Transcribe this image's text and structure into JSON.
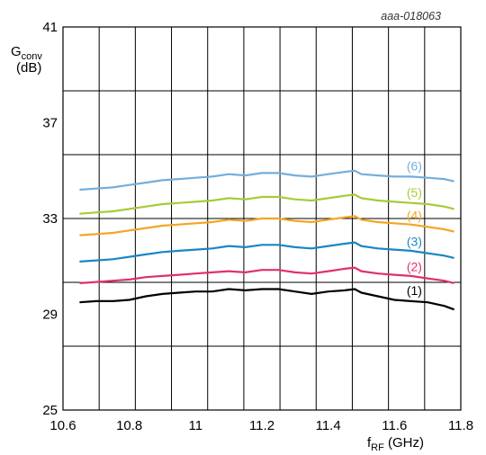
{
  "chart_data": {
    "type": "line",
    "code_label": "aaa-018063",
    "ylabel_main": "G",
    "ylabel_sub": "conv",
    "ylabel_unit": "(dB)",
    "xlabel_main": "f",
    "xlabel_sub": "RF",
    "xlabel_unit": " (GHz)",
    "xlim": [
      10.6,
      11.8
    ],
    "ylim": [
      25,
      41
    ],
    "grid": true,
    "x_ticks": [
      "10.6",
      "10.8",
      "11",
      "11.2",
      "11.4",
      "11.6",
      "11.8"
    ],
    "y_ticks": [
      "25",
      "29",
      "33",
      "37",
      "41"
    ],
    "series": [
      {
        "name": "(1)",
        "color": "#000000",
        "x": [
          10.65,
          10.7,
          10.75,
          10.8,
          10.85,
          10.9,
          10.95,
          11.0,
          11.05,
          11.1,
          11.15,
          11.2,
          11.25,
          11.3,
          11.35,
          11.4,
          11.45,
          11.48,
          11.5,
          11.55,
          11.6,
          11.65,
          11.7,
          11.75,
          11.78
        ],
        "y": [
          29.5,
          29.55,
          29.55,
          29.6,
          29.75,
          29.85,
          29.9,
          29.95,
          29.95,
          30.05,
          30.0,
          30.05,
          30.05,
          29.95,
          29.85,
          29.95,
          30.0,
          30.05,
          29.9,
          29.75,
          29.6,
          29.55,
          29.5,
          29.35,
          29.2
        ]
      },
      {
        "name": "(2)",
        "color": "#e0306e",
        "x": [
          10.65,
          10.7,
          10.75,
          10.8,
          10.85,
          10.9,
          10.95,
          11.0,
          11.05,
          11.1,
          11.15,
          11.2,
          11.25,
          11.3,
          11.35,
          11.4,
          11.45,
          11.48,
          11.5,
          11.55,
          11.6,
          11.65,
          11.7,
          11.75,
          11.78
        ],
        "y": [
          30.3,
          30.35,
          30.4,
          30.45,
          30.55,
          30.6,
          30.65,
          30.7,
          30.75,
          30.8,
          30.75,
          30.85,
          30.85,
          30.75,
          30.7,
          30.8,
          30.9,
          30.95,
          30.8,
          30.7,
          30.65,
          30.6,
          30.5,
          30.4,
          30.3
        ]
      },
      {
        "name": "(3)",
        "color": "#1a86c4",
        "x": [
          10.65,
          10.7,
          10.75,
          10.8,
          10.85,
          10.9,
          10.95,
          11.0,
          11.05,
          11.1,
          11.15,
          11.2,
          11.25,
          11.3,
          11.35,
          11.4,
          11.45,
          11.48,
          11.5,
          11.55,
          11.6,
          11.65,
          11.7,
          11.75,
          11.78
        ],
        "y": [
          31.2,
          31.25,
          31.3,
          31.4,
          31.5,
          31.6,
          31.65,
          31.7,
          31.75,
          31.85,
          31.8,
          31.9,
          31.9,
          31.8,
          31.75,
          31.85,
          31.95,
          32.0,
          31.85,
          31.75,
          31.7,
          31.65,
          31.55,
          31.45,
          31.35
        ]
      },
      {
        "name": "(4)",
        "color": "#f2a623",
        "x": [
          10.65,
          10.7,
          10.75,
          10.8,
          10.85,
          10.9,
          10.95,
          11.0,
          11.05,
          11.1,
          11.15,
          11.2,
          11.25,
          11.3,
          11.35,
          11.4,
          11.45,
          11.48,
          11.5,
          11.55,
          11.6,
          11.65,
          11.7,
          11.75,
          11.78
        ],
        "y": [
          32.3,
          32.35,
          32.4,
          32.5,
          32.6,
          32.7,
          32.75,
          32.8,
          32.85,
          32.95,
          32.9,
          33.0,
          33.0,
          32.9,
          32.85,
          32.95,
          33.05,
          33.1,
          32.95,
          32.85,
          32.8,
          32.75,
          32.65,
          32.55,
          32.45
        ]
      },
      {
        "name": "(5)",
        "color": "#a6cc38",
        "x": [
          10.65,
          10.7,
          10.75,
          10.8,
          10.85,
          10.9,
          10.95,
          11.0,
          11.05,
          11.1,
          11.15,
          11.2,
          11.25,
          11.3,
          11.35,
          11.4,
          11.45,
          11.48,
          11.5,
          11.55,
          11.6,
          11.65,
          11.7,
          11.75,
          11.78
        ],
        "y": [
          33.2,
          33.25,
          33.3,
          33.4,
          33.5,
          33.6,
          33.65,
          33.7,
          33.75,
          33.85,
          33.8,
          33.9,
          33.9,
          33.8,
          33.75,
          33.85,
          33.95,
          34.0,
          33.85,
          33.75,
          33.7,
          33.65,
          33.6,
          33.5,
          33.4
        ]
      },
      {
        "name": "(6)",
        "color": "#74aedb",
        "x": [
          10.65,
          10.7,
          10.75,
          10.8,
          10.85,
          10.9,
          10.95,
          11.0,
          11.05,
          11.1,
          11.15,
          11.2,
          11.25,
          11.3,
          11.35,
          11.4,
          11.45,
          11.48,
          11.5,
          11.55,
          11.6,
          11.65,
          11.7,
          11.75,
          11.78
        ],
        "y": [
          34.2,
          34.25,
          34.3,
          34.4,
          34.5,
          34.6,
          34.65,
          34.7,
          34.75,
          34.85,
          34.8,
          34.9,
          34.9,
          34.8,
          34.75,
          34.85,
          34.95,
          35.0,
          34.85,
          34.8,
          34.75,
          34.75,
          34.7,
          34.65,
          34.55
        ]
      }
    ]
  }
}
